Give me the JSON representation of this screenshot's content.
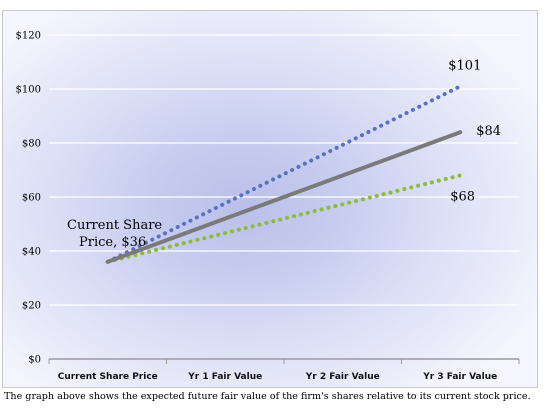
{
  "chart_data": {
    "type": "line",
    "categories": [
      "Current Share Price",
      "Yr 1 Fair Value",
      "Yr 2 Fair Value",
      "Yr 3 Fair Value"
    ],
    "y_ticks": [
      "$0",
      "$20",
      "$40",
      "$60",
      "$80",
      "$100",
      "$120"
    ],
    "ylim": [
      0,
      120
    ],
    "grid": true,
    "series": [
      {
        "key": "high",
        "values": [
          36,
          57.7,
          79.3,
          101
        ],
        "color": "#5b6fc4",
        "style": "dotted",
        "end_label": "$101"
      },
      {
        "key": "mid",
        "values": [
          36,
          52,
          68,
          84
        ],
        "color": "#7a7a7a",
        "style": "solid",
        "end_label": "$84"
      },
      {
        "key": "low",
        "values": [
          36,
          46.7,
          57.3,
          68
        ],
        "color": "#8fba3c",
        "style": "dotted",
        "end_label": "$68"
      }
    ],
    "annotation": {
      "line1": "Current Share",
      "line2": "Price, $36"
    }
  },
  "caption": "The graph above shows the expected future fair value of the firm's shares relative to its current stock price."
}
